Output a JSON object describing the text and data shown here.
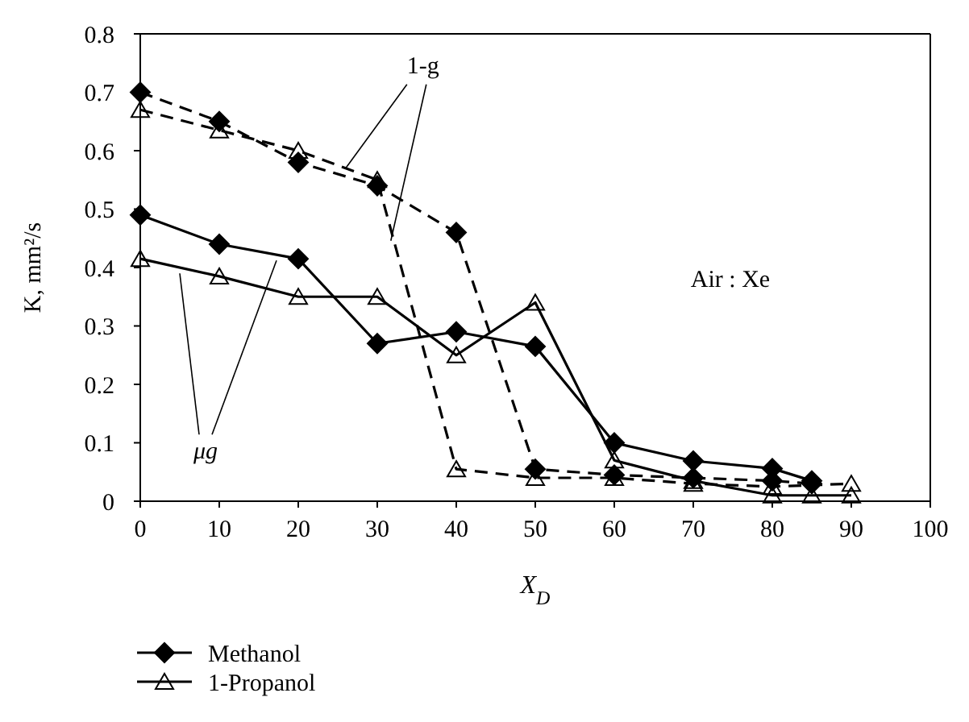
{
  "chart_data": {
    "type": "line",
    "xlabel": "X$_{D}$",
    "ylabel": "K, mm²/s",
    "xlim": [
      0,
      100
    ],
    "xticks": [
      0,
      10,
      20,
      30,
      40,
      50,
      60,
      70,
      80,
      90,
      100
    ],
    "ylim": [
      0,
      0.8
    ],
    "yticks": [
      0,
      0.1,
      0.2,
      0.3,
      0.4,
      0.5,
      0.6,
      0.7,
      0.8
    ],
    "grid": false,
    "legend": "bottom",
    "annotations": [
      {
        "text": "1-g",
        "x": 26,
        "y": 0.57
      },
      {
        "text": "μg",
        "x": 5,
        "y": 0.39
      },
      "Air : Xe"
    ],
    "series": [
      {
        "name": "Methanol",
        "color": "#000000",
        "marker": "diamond",
        "line_style": "solid",
        "x": [
          0,
          10,
          20,
          30,
          40,
          50,
          60,
          70,
          80,
          85
        ],
        "values": [
          0.49,
          0.44,
          0.415,
          0.27,
          0.29,
          0.265,
          0.1,
          0.069,
          0.056,
          0.035
        ]
      },
      {
        "name": "1-Propanol",
        "color": "#000000",
        "marker": "triangle",
        "line_style": "solid",
        "x": [
          0,
          10,
          20,
          30,
          40,
          50,
          60,
          70,
          80,
          85,
          90
        ],
        "values": [
          0.415,
          0.385,
          0.35,
          0.35,
          0.25,
          0.34,
          0.07,
          0.035,
          0.01,
          0.01,
          0.01
        ]
      },
      {
        "color": "#000000",
        "marker": "diamond",
        "line_style": "dashed",
        "x": [
          0,
          10,
          20,
          30,
          40,
          50,
          60,
          70,
          80,
          85
        ],
        "values": [
          0.7,
          0.65,
          0.58,
          0.54,
          0.46,
          0.055,
          0.045,
          0.04,
          0.035,
          0.03
        ]
      },
      {
        "color": "#000000",
        "marker": "triangle",
        "line_style": "dashed",
        "x": [
          0,
          10,
          20,
          30,
          40,
          50,
          60,
          70,
          80,
          90
        ],
        "values": [
          0.67,
          0.635,
          0.6,
          0.55,
          0.055,
          0.04,
          0.04,
          0.03,
          0.025,
          0.03
        ]
      }
    ]
  }
}
